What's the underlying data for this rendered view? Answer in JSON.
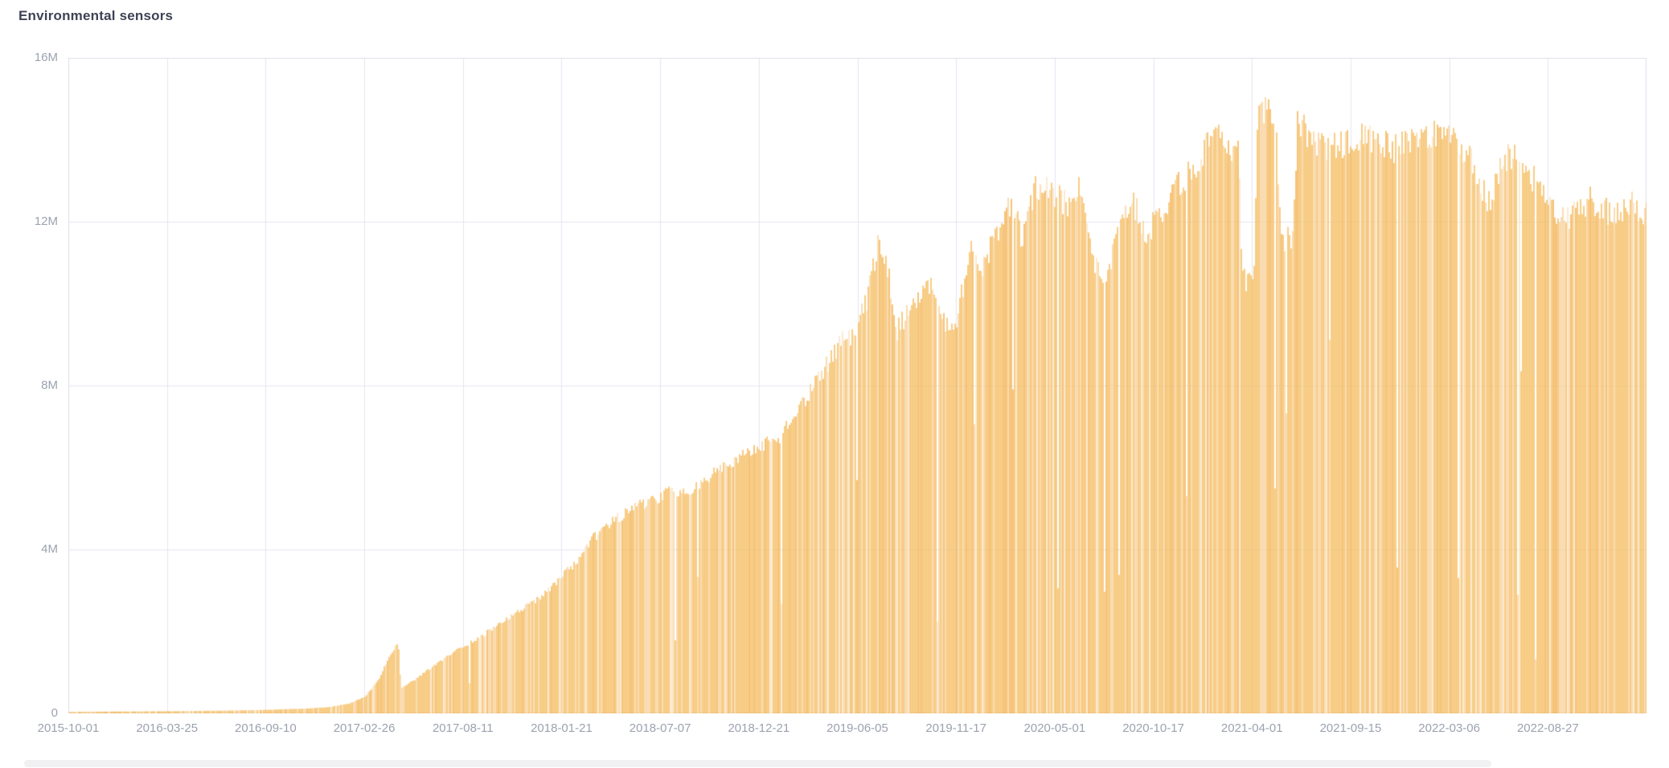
{
  "header": {
    "title": "Environmental sensors"
  },
  "colors": {
    "bar_base": "#F6BC5F",
    "bar_light": "#F8D199",
    "bar_lighter": "#FBE4C2",
    "bar_dark": "#F2B150",
    "grid": "#E4E4F0",
    "axis_line": "#D9D9E6",
    "plot_border": "#DFDFEB",
    "tick_label": "#9CA2AF",
    "title": "#3F4254",
    "background": "#FFFFFF"
  },
  "chart_data": {
    "type": "bar",
    "title": "Environmental sensors",
    "xlabel": "",
    "ylabel": "",
    "legend": "none",
    "grid": true,
    "y_axis": {
      "min": 0,
      "max": 16000000,
      "tick_labels_top_to_bottom": [
        "16M",
        "12M",
        "8M",
        "4M",
        "0"
      ],
      "tick_values": [
        16000000,
        12000000,
        8000000,
        4000000,
        0
      ]
    },
    "x_axis": {
      "tick_labels": [
        "2015-10-01",
        "2016-03-25",
        "2016-09-10",
        "2017-02-26",
        "2017-08-11",
        "2018-01-21",
        "2018-07-07",
        "2018-12-21",
        "2019-06-05",
        "2019-11-17",
        "2020-05-01",
        "2020-10-17",
        "2021-04-01",
        "2021-09-15",
        "2022-03-06",
        "2022-08-27"
      ],
      "note_bars_extend_past_last_label": true
    },
    "series": [
      {
        "name": "Environmental sensors",
        "value_units": "millions",
        "envelope_points_frac_value": [
          [
            0.0,
            0.04
          ],
          [
            0.04,
            0.05
          ],
          [
            0.0625,
            0.055
          ],
          [
            0.1,
            0.07
          ],
          [
            0.125,
            0.09
          ],
          [
            0.15,
            0.12
          ],
          [
            0.165,
            0.16
          ],
          [
            0.178,
            0.25
          ],
          [
            0.1875,
            0.42
          ],
          [
            0.196,
            0.85
          ],
          [
            0.2035,
            1.45
          ],
          [
            0.2085,
            1.78
          ],
          [
            0.2105,
            0.62
          ],
          [
            0.22,
            0.88
          ],
          [
            0.235,
            1.32
          ],
          [
            0.25,
            1.68
          ],
          [
            0.262,
            1.95
          ],
          [
            0.27,
            2.2
          ],
          [
            0.285,
            2.55
          ],
          [
            0.3,
            2.95
          ],
          [
            0.3125,
            3.45
          ],
          [
            0.32,
            3.75
          ],
          [
            0.332,
            4.4
          ],
          [
            0.345,
            4.85
          ],
          [
            0.36,
            5.2
          ],
          [
            0.375,
            5.45
          ],
          [
            0.384,
            5.62
          ],
          [
            0.391,
            5.45
          ],
          [
            0.4,
            5.8
          ],
          [
            0.412,
            6.1
          ],
          [
            0.425,
            6.4
          ],
          [
            0.4375,
            6.65
          ],
          [
            0.45,
            6.95
          ],
          [
            0.462,
            7.6
          ],
          [
            0.475,
            8.4
          ],
          [
            0.488,
            9.3
          ],
          [
            0.497,
            9.55
          ],
          [
            0.506,
            10.4
          ],
          [
            0.5135,
            12.0
          ],
          [
            0.519,
            11.05
          ],
          [
            0.5245,
            9.6
          ],
          [
            0.535,
            10.35
          ],
          [
            0.545,
            10.75
          ],
          [
            0.5535,
            9.85
          ],
          [
            0.5625,
            9.75
          ],
          [
            0.5705,
            11.7
          ],
          [
            0.579,
            11.25
          ],
          [
            0.588,
            12.1
          ],
          [
            0.5965,
            12.85
          ],
          [
            0.604,
            11.95
          ],
          [
            0.6125,
            13.2
          ],
          [
            0.625,
            13.05
          ],
          [
            0.635,
            12.7
          ],
          [
            0.64,
            13.2
          ],
          [
            0.65,
            11.3
          ],
          [
            0.658,
            11.0
          ],
          [
            0.668,
            12.7
          ],
          [
            0.675,
            12.8
          ],
          [
            0.682,
            11.9
          ],
          [
            0.6875,
            12.3
          ],
          [
            0.7,
            13.1
          ],
          [
            0.712,
            13.6
          ],
          [
            0.72,
            14.2
          ],
          [
            0.7285,
            14.75
          ],
          [
            0.7365,
            13.9
          ],
          [
            0.7405,
            14.7
          ],
          [
            0.7435,
            10.95
          ],
          [
            0.7505,
            10.8
          ],
          [
            0.7535,
            15.3
          ],
          [
            0.7605,
            15.1
          ],
          [
            0.7645,
            15.0
          ],
          [
            0.768,
            11.95
          ],
          [
            0.7755,
            11.85
          ],
          [
            0.7785,
            14.85
          ],
          [
            0.786,
            14.45
          ],
          [
            0.8,
            14.2
          ],
          [
            0.8125,
            14.35
          ],
          [
            0.825,
            14.45
          ],
          [
            0.84,
            14.2
          ],
          [
            0.855,
            14.5
          ],
          [
            0.868,
            14.65
          ],
          [
            0.875,
            14.5
          ],
          [
            0.885,
            14.05
          ],
          [
            0.8925,
            13.5
          ],
          [
            0.9,
            12.8
          ],
          [
            0.9075,
            13.9
          ],
          [
            0.92,
            13.9
          ],
          [
            0.9285,
            13.35
          ],
          [
            0.9375,
            12.65
          ],
          [
            0.95,
            12.45
          ],
          [
            0.9645,
            12.9
          ],
          [
            0.978,
            12.5
          ],
          [
            0.99,
            12.9
          ],
          [
            1.0,
            12.45
          ]
        ],
        "max_value_m": 15.3,
        "notches": [
          {
            "frac_start": 0.7435,
            "frac_end": 0.7505,
            "value_m": 10.9
          },
          {
            "frac_start": 0.768,
            "frac_end": 0.7755,
            "value_m": 11.9
          }
        ]
      }
    ]
  }
}
